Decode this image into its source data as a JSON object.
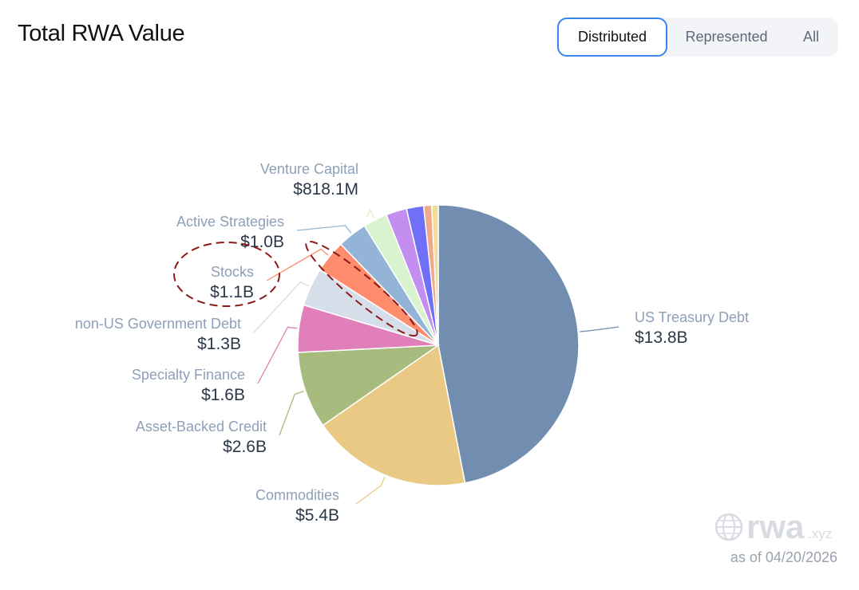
{
  "title": "Total RWA Value",
  "toggle": {
    "options": [
      "Distributed",
      "Represented",
      "All"
    ],
    "active": "Distributed"
  },
  "watermark": {
    "brand": "rwa",
    "suffix": ".xyz"
  },
  "as_of": "as of 04/20/2026",
  "chart_data": {
    "type": "pie",
    "title": "Total RWA Value",
    "slices": [
      {
        "name": "US Treasury Debt",
        "value": 13.8,
        "value_label": "$13.8B",
        "color": "#718eb1",
        "labeled": true
      },
      {
        "name": "Commodities",
        "value": 5.4,
        "value_label": "$5.4B",
        "color": "#eac984",
        "labeled": true
      },
      {
        "name": "Asset-Backed Credit",
        "value": 2.6,
        "value_label": "$2.6B",
        "color": "#a6bb7d",
        "labeled": true
      },
      {
        "name": "Specialty Finance",
        "value": 1.6,
        "value_label": "$1.6B",
        "color": "#e07fb9",
        "labeled": true
      },
      {
        "name": "non-US Government Debt",
        "value": 1.3,
        "value_label": "$1.3B",
        "color": "#d6deea",
        "labeled": true
      },
      {
        "name": "Stocks",
        "value": 1.1,
        "value_label": "$1.1B",
        "color": "#fe8c6d",
        "labeled": true
      },
      {
        "name": "Active Strategies",
        "value": 1.0,
        "value_label": "$1.0B",
        "color": "#93b4d6",
        "labeled": true
      },
      {
        "name": "Venture Capital",
        "value": 0.8181,
        "value_label": "$818.1M",
        "color": "#daf3cf",
        "labeled": true
      },
      {
        "name": "",
        "value": 0.7,
        "value_label": "",
        "color": "#c38ef0",
        "labeled": false
      },
      {
        "name": "",
        "value": 0.58,
        "value_label": "",
        "color": "#6f6ff7",
        "labeled": false
      },
      {
        "name": "",
        "value": 0.27,
        "value_label": "",
        "color": "#f0a98a",
        "labeled": false
      },
      {
        "name": "",
        "value": 0.22,
        "value_label": "",
        "color": "#f3dc97",
        "labeled": false
      }
    ],
    "annotation": {
      "type": "dashed-ellipse",
      "color": "#8b1a1a",
      "targets": [
        "Stocks"
      ]
    }
  }
}
